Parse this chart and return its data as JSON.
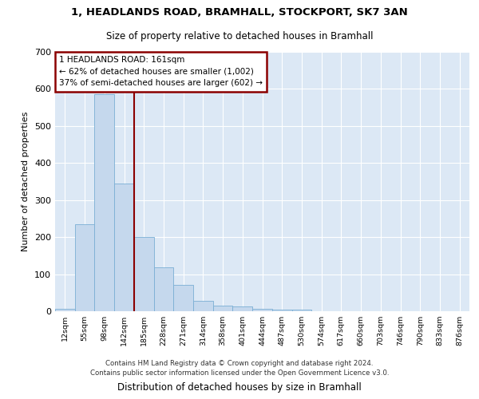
{
  "title_line1": "1, HEADLANDS ROAD, BRAMHALL, STOCKPORT, SK7 3AN",
  "title_line2": "Size of property relative to detached houses in Bramhall",
  "xlabel": "Distribution of detached houses by size in Bramhall",
  "ylabel": "Number of detached properties",
  "footnote": "Contains HM Land Registry data © Crown copyright and database right 2024.\nContains public sector information licensed under the Open Government Licence v3.0.",
  "bar_labels": [
    "12sqm",
    "55sqm",
    "98sqm",
    "142sqm",
    "185sqm",
    "228sqm",
    "271sqm",
    "314sqm",
    "358sqm",
    "401sqm",
    "444sqm",
    "487sqm",
    "530sqm",
    "574sqm",
    "617sqm",
    "660sqm",
    "703sqm",
    "746sqm",
    "790sqm",
    "833sqm",
    "876sqm"
  ],
  "bar_values": [
    7,
    235,
    585,
    345,
    200,
    118,
    72,
    27,
    15,
    12,
    7,
    5,
    5,
    0,
    0,
    0,
    0,
    0,
    0,
    0,
    0
  ],
  "bar_color": "#c5d8ed",
  "bar_edge_color": "#7aafd4",
  "vline_x": 3.5,
  "vline_color": "#8b0000",
  "annotation_title": "1 HEADLANDS ROAD: 161sqm",
  "annotation_line1": "← 62% of detached houses are smaller (1,002)",
  "annotation_line2": "37% of semi-detached houses are larger (602) →",
  "annotation_box_color": "#8b0000",
  "ylim": [
    0,
    700
  ],
  "yticks": [
    0,
    100,
    200,
    300,
    400,
    500,
    600,
    700
  ],
  "bg_color": "#dce8f5",
  "grid_color": "#ffffff"
}
